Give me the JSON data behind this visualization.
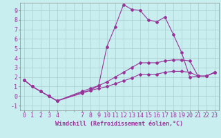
{
  "xlabel": "Windchill (Refroidissement éolien,°C)",
  "bg_color": "#c8eef0",
  "line_color": "#993399",
  "grid_color": "#aacccc",
  "xlim": [
    -0.5,
    23.5
  ],
  "ylim": [
    -1.5,
    9.8
  ],
  "yticks": [
    -1,
    0,
    1,
    2,
    3,
    4,
    5,
    6,
    7,
    8,
    9
  ],
  "xticks": [
    0,
    1,
    2,
    3,
    4,
    7,
    8,
    9,
    10,
    11,
    12,
    13,
    14,
    15,
    16,
    17,
    18,
    19,
    20,
    21,
    22,
    23
  ],
  "line1_x": [
    0,
    1,
    2,
    3,
    4,
    7,
    8,
    9,
    10,
    11,
    12,
    13,
    14,
    15,
    16,
    17,
    18,
    19,
    20,
    21,
    22,
    23
  ],
  "line1_y": [
    1.7,
    1.0,
    0.5,
    0.0,
    -0.5,
    0.3,
    0.6,
    1.1,
    5.2,
    7.3,
    9.6,
    9.1,
    9.0,
    8.0,
    7.8,
    8.3,
    6.5,
    4.6,
    2.0,
    2.1,
    2.1,
    2.5
  ],
  "line2_x": [
    0,
    1,
    2,
    3,
    4,
    7,
    8,
    9,
    10,
    11,
    12,
    13,
    14,
    15,
    16,
    17,
    18,
    19,
    20,
    21,
    22,
    23
  ],
  "line2_y": [
    1.7,
    1.0,
    0.5,
    0.0,
    -0.5,
    0.5,
    0.8,
    1.1,
    1.5,
    2.0,
    2.5,
    3.0,
    3.5,
    3.5,
    3.5,
    3.7,
    3.8,
    3.8,
    3.7,
    2.1,
    2.1,
    2.5
  ],
  "line3_x": [
    0,
    1,
    2,
    3,
    4,
    7,
    8,
    9,
    10,
    11,
    12,
    13,
    14,
    15,
    16,
    17,
    18,
    19,
    20,
    21,
    22,
    23
  ],
  "line3_y": [
    1.7,
    1.0,
    0.5,
    0.0,
    -0.5,
    0.4,
    0.6,
    0.8,
    1.0,
    1.3,
    1.6,
    1.9,
    2.3,
    2.3,
    2.3,
    2.5,
    2.6,
    2.6,
    2.5,
    2.1,
    2.1,
    2.5
  ],
  "marker": "D",
  "markersize": 2.0,
  "linewidth": 0.8,
  "xlabel_fontsize": 6.0,
  "tick_fontsize": 6.0
}
